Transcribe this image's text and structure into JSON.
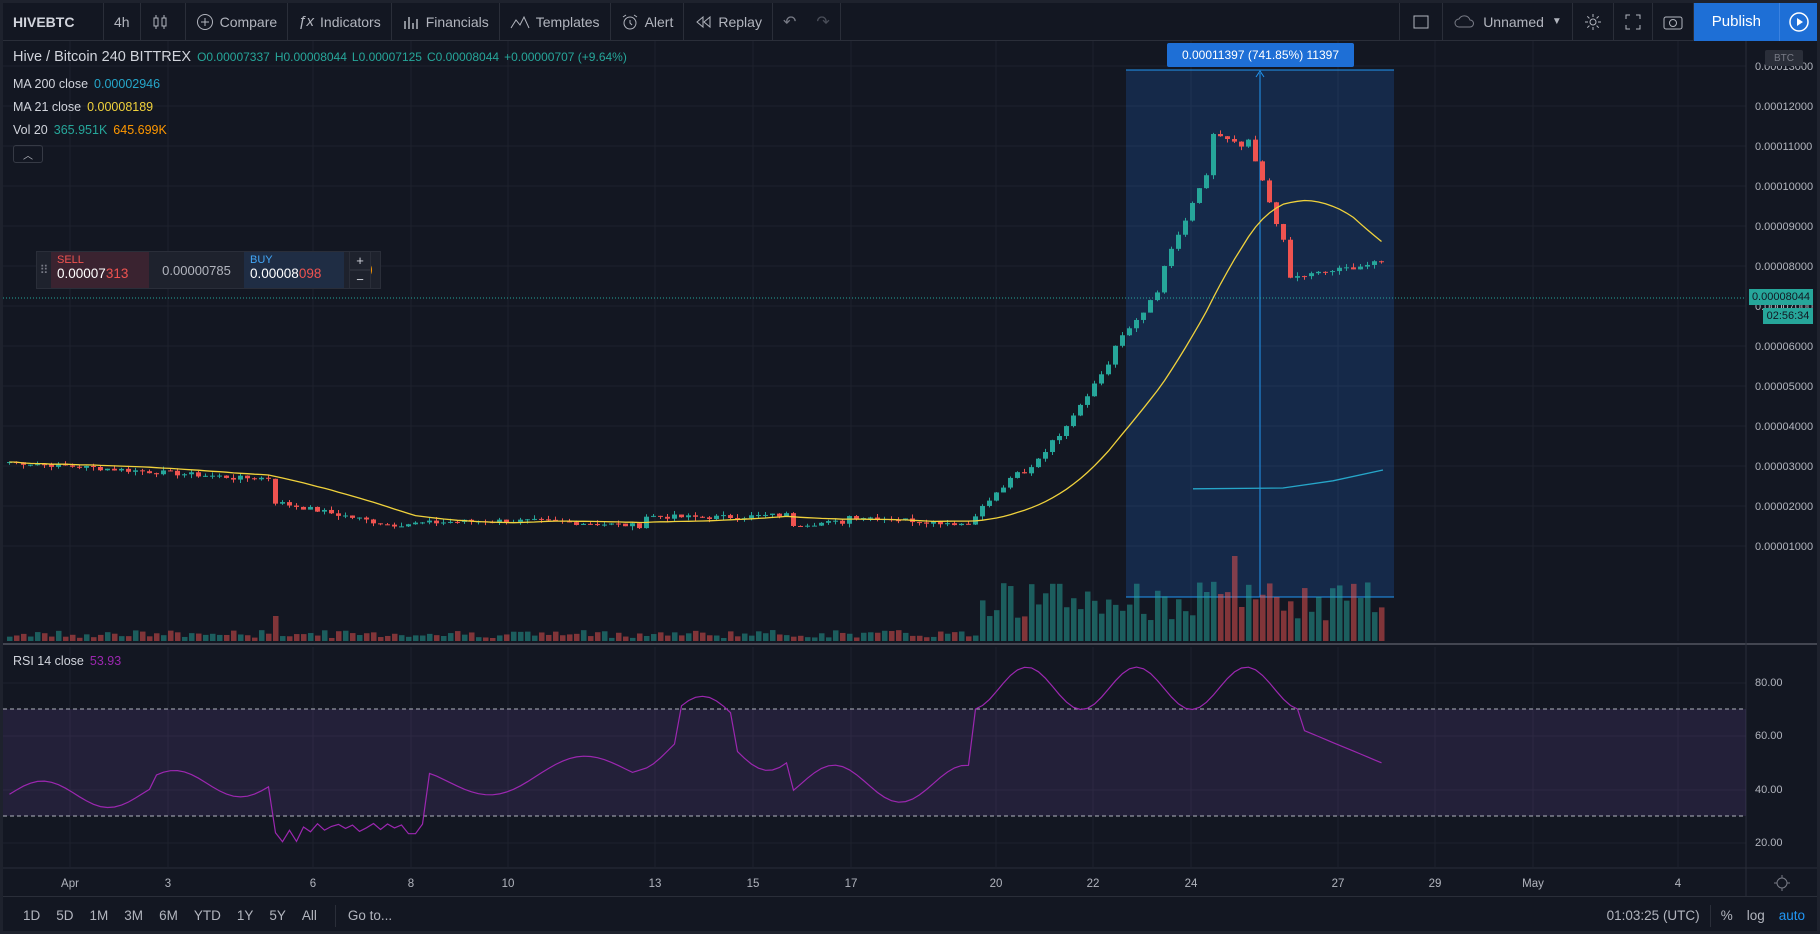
{
  "toolbar": {
    "symbol": "HIVEBTC",
    "interval": "4h",
    "compare": "Compare",
    "indicators": "Indicators",
    "financials": "Financials",
    "templates": "Templates",
    "alert": "Alert",
    "replay": "Replay",
    "layout_name": "Unnamed",
    "publish": "Publish"
  },
  "legend": {
    "title": "Hive / Bitcoin  240  BITTREX",
    "open": "O0.00007337",
    "high": "H0.00008044",
    "low": "L0.00007125",
    "close": "C0.00008044",
    "change": "+0.00000707 (+9.64%)",
    "ma200_name": "MA 200 close",
    "ma200_value": "0.00002946",
    "ma21_name": "MA 21 close",
    "ma21_value": "0.00008189",
    "vol_name": "Vol 20",
    "vol_value1": "365.951K",
    "vol_value2": "645.699K"
  },
  "trade": {
    "sell_label": "SELL",
    "sell_main": "0.00007",
    "sell_hl": "313",
    "spread": "0.00000785",
    "buy_label": "BUY",
    "buy_main": "0.00008",
    "buy_hl": "098",
    "plus": "+",
    "minus": "−"
  },
  "measure_label": "0.00011397 (741.85%) 11397",
  "currency_tag": "BTC",
  "last_price_tag": "0.00008044",
  "countdown_tag": "02:56:34",
  "rsi": {
    "name": "RSI 14 close",
    "value": "53.93"
  },
  "price_axis": [
    "0.00013000",
    "0.00012000",
    "0.00011000",
    "0.00010000",
    "0.00009000",
    "0.00008000",
    "0.00007000",
    "0.00006000",
    "0.00005000",
    "0.00004000",
    "0.00003000",
    "0.00002000",
    "0.00001000"
  ],
  "rsi_axis": [
    "80.00",
    "60.00",
    "40.00",
    "20.00"
  ],
  "time_axis": [
    "Apr",
    "3",
    "6",
    "8",
    "10",
    "13",
    "15",
    "17",
    "20",
    "22",
    "24",
    "27",
    "29",
    "May",
    "4"
  ],
  "bottom": {
    "ranges": [
      "1D",
      "5D",
      "1M",
      "3M",
      "6M",
      "YTD",
      "1Y",
      "5Y",
      "All"
    ],
    "goto": "Go to...",
    "clock": "01:03:25 (UTC)",
    "percent": "%",
    "log": "log",
    "auto": "auto"
  },
  "colors": {
    "up": "#26a69a",
    "down": "#ef5350",
    "ma21": "#f0d23c",
    "ma200": "#26a6c9",
    "rsi": "#9c27b0",
    "accent": "#1e6fd6"
  },
  "chart_data": {
    "type": "candlestick",
    "ylim": [
      0,
      0.000135
    ],
    "rsi_levels": [
      70,
      30
    ],
    "rsi_ylim": [
      10,
      95
    ]
  }
}
